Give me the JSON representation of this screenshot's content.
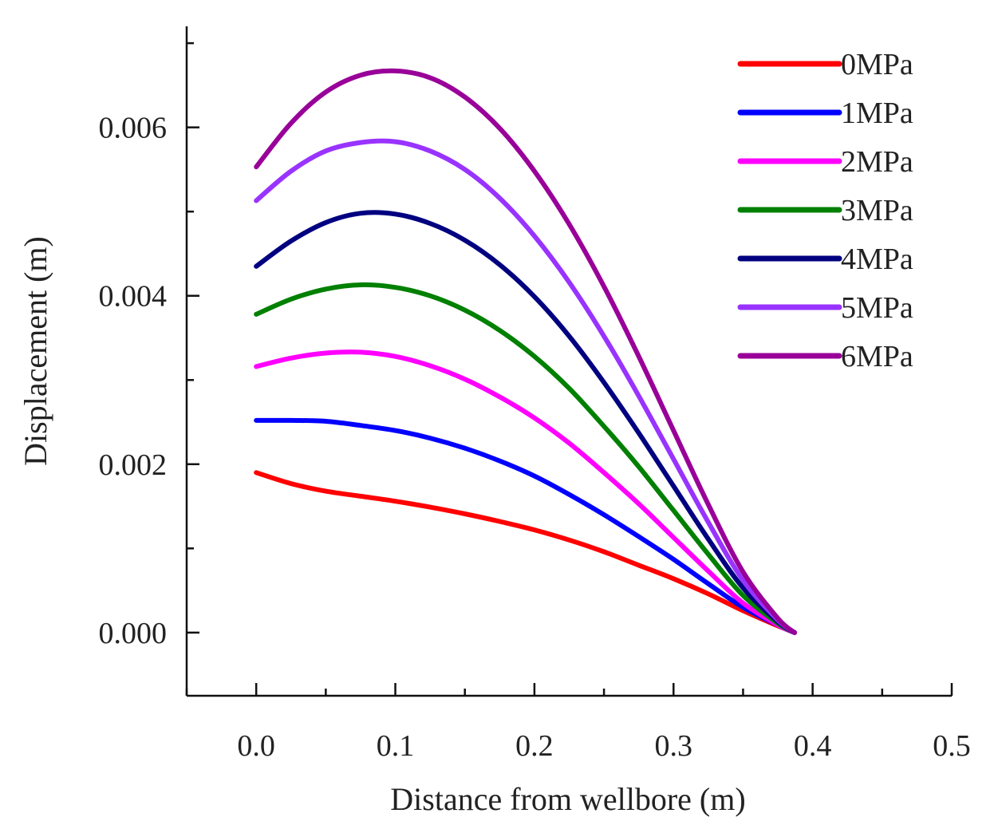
{
  "chart_data": {
    "type": "line",
    "title": "",
    "xlabel": "Distance from wellbore (m)",
    "ylabel": "Displacement (m)",
    "xlim": [
      -0.05,
      0.5
    ],
    "ylim": [
      -0.00075,
      0.0072
    ],
    "x_major_ticks": [
      0.0,
      0.1,
      0.2,
      0.3,
      0.4,
      0.5
    ],
    "x_tick_labels": [
      "0.0",
      "0.1",
      "0.2",
      "0.3",
      "0.4",
      "0.5"
    ],
    "x_minor_ticks": [
      -0.05,
      0.05,
      0.15,
      0.25,
      0.35,
      0.45
    ],
    "y_major_ticks": [
      0.0,
      0.002,
      0.004,
      0.006
    ],
    "y_tick_labels": [
      "0.000",
      "0.002",
      "0.004",
      "0.006"
    ],
    "y_minor_ticks": [
      0.001,
      0.003,
      0.005,
      0.007
    ],
    "grid": false,
    "legend_position": "top-right",
    "series": [
      {
        "name": "0MPa",
        "color": "#ff0000",
        "x": [
          0.0,
          0.025,
          0.05,
          0.075,
          0.1,
          0.125,
          0.15,
          0.175,
          0.2,
          0.225,
          0.25,
          0.275,
          0.3,
          0.325,
          0.35,
          0.375,
          0.387
        ],
        "y": [
          0.0019,
          0.00177,
          0.00168,
          0.00162,
          0.00156,
          0.00149,
          0.00141,
          0.00132,
          0.00122,
          0.0011,
          0.00096,
          0.0008,
          0.00064,
          0.00046,
          0.00026,
          8e-05,
          0.0
        ]
      },
      {
        "name": "1MPa",
        "color": "#0000ff",
        "x": [
          0.0,
          0.025,
          0.05,
          0.075,
          0.1,
          0.125,
          0.15,
          0.175,
          0.2,
          0.225,
          0.25,
          0.275,
          0.3,
          0.325,
          0.35,
          0.375,
          0.387
        ],
        "y": [
          0.00252,
          0.00252,
          0.00251,
          0.00246,
          0.0024,
          0.00231,
          0.00219,
          0.00204,
          0.00186,
          0.00164,
          0.0014,
          0.00114,
          0.00087,
          0.00058,
          0.0003,
          9e-05,
          0.0
        ]
      },
      {
        "name": "2MPa",
        "color": "#ff00ff",
        "x": [
          0.0,
          0.025,
          0.05,
          0.075,
          0.1,
          0.125,
          0.15,
          0.175,
          0.2,
          0.225,
          0.25,
          0.275,
          0.3,
          0.325,
          0.35,
          0.375,
          0.387
        ],
        "y": [
          0.00316,
          0.00326,
          0.00332,
          0.00333,
          0.00328,
          0.00317,
          0.00301,
          0.0028,
          0.00255,
          0.00225,
          0.0019,
          0.00153,
          0.00113,
          0.00073,
          0.00035,
          9e-05,
          0.0
        ]
      },
      {
        "name": "3MPa",
        "color": "#008000",
        "x": [
          0.0,
          0.025,
          0.05,
          0.075,
          0.1,
          0.125,
          0.15,
          0.175,
          0.2,
          0.225,
          0.25,
          0.275,
          0.3,
          0.325,
          0.35,
          0.375,
          0.387
        ],
        "y": [
          0.00378,
          0.00396,
          0.00408,
          0.00413,
          0.0041,
          0.004,
          0.00383,
          0.00359,
          0.00328,
          0.0029,
          0.00245,
          0.00197,
          0.00145,
          0.00093,
          0.00044,
          0.00011,
          0.0
        ]
      },
      {
        "name": "4MPa",
        "color": "#000080",
        "x": [
          0.0,
          0.025,
          0.05,
          0.075,
          0.1,
          0.125,
          0.15,
          0.175,
          0.2,
          0.225,
          0.25,
          0.275,
          0.3,
          0.325,
          0.35,
          0.375,
          0.387
        ],
        "y": [
          0.00435,
          0.00465,
          0.00487,
          0.00498,
          0.00497,
          0.00486,
          0.00466,
          0.00437,
          0.00399,
          0.00352,
          0.00297,
          0.00237,
          0.00174,
          0.00111,
          0.00053,
          0.00013,
          0.0
        ]
      },
      {
        "name": "5MPa",
        "color": "#9933ff",
        "x": [
          0.0,
          0.025,
          0.05,
          0.075,
          0.1,
          0.125,
          0.15,
          0.175,
          0.2,
          0.225,
          0.25,
          0.275,
          0.3,
          0.325,
          0.35,
          0.375,
          0.387
        ],
        "y": [
          0.00513,
          0.00548,
          0.00572,
          0.00582,
          0.00583,
          0.00572,
          0.0055,
          0.00516,
          0.00471,
          0.00416,
          0.00352,
          0.00281,
          0.00206,
          0.00131,
          0.00062,
          0.00015,
          0.0
        ]
      },
      {
        "name": "6MPa",
        "color": "#990099",
        "x": [
          0.0,
          0.025,
          0.05,
          0.075,
          0.1,
          0.125,
          0.15,
          0.175,
          0.2,
          0.225,
          0.25,
          0.275,
          0.3,
          0.325,
          0.35,
          0.375,
          0.387
        ],
        "y": [
          0.00553,
          0.00605,
          0.00642,
          0.00662,
          0.00667,
          0.00659,
          0.00636,
          0.00599,
          0.00548,
          0.00485,
          0.00411,
          0.00328,
          0.0024,
          0.00152,
          0.00072,
          0.00017,
          0.0
        ]
      }
    ]
  }
}
